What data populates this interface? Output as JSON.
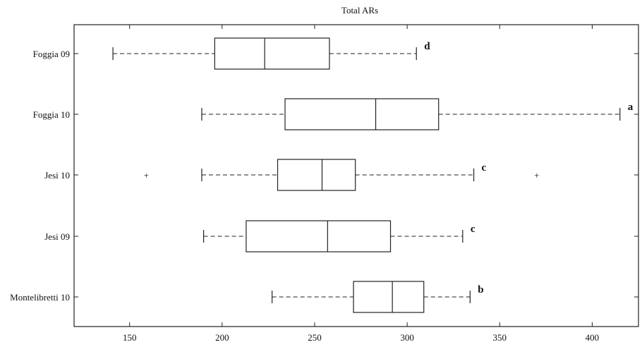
{
  "chart_data": {
    "type": "boxplot",
    "orientation": "horizontal",
    "title": "Total ARs",
    "xlim": [
      120,
      425
    ],
    "xticks": [
      150,
      200,
      250,
      300,
      350,
      400
    ],
    "xtick_labels": [
      "150",
      "200",
      "250",
      "300",
      "350",
      "400"
    ],
    "grid": false,
    "categories": [
      "Foggia 09",
      "Foggia 10",
      "Jesi 10",
      "Jesi 09",
      "Montelibretti 10"
    ],
    "boxes": [
      {
        "label": "Foggia 09",
        "whisker_low": 141,
        "q1": 196,
        "median": 223,
        "q3": 258,
        "whisker_high": 305,
        "outliers": [],
        "group": "d"
      },
      {
        "label": "Foggia 10",
        "whisker_low": 189,
        "q1": 234,
        "median": 283,
        "q3": 317,
        "whisker_high": 415,
        "outliers": [],
        "group": "a"
      },
      {
        "label": "Jesi 10",
        "whisker_low": 189,
        "q1": 230,
        "median": 254,
        "q3": 272,
        "whisker_high": 336,
        "outliers": [
          159,
          370
        ],
        "group": "c"
      },
      {
        "label": "Jesi 09",
        "whisker_low": 190,
        "q1": 213,
        "median": 257,
        "q3": 291,
        "whisker_high": 330,
        "outliers": [],
        "group": "c"
      },
      {
        "label": "Montelibretti 10",
        "whisker_low": 227,
        "q1": 271,
        "median": 292,
        "q3": 309,
        "whisker_high": 334,
        "outliers": [],
        "group": "b"
      }
    ]
  }
}
